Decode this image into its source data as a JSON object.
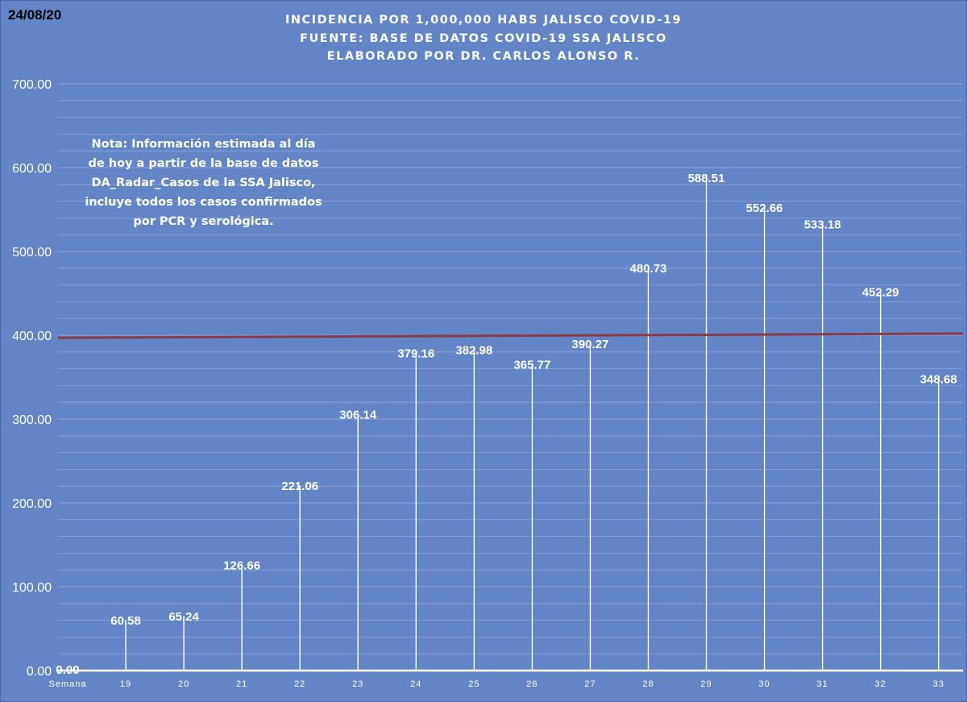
{
  "date": "24/08/20",
  "title_lines": [
    "INCIDENCIA POR 1,000,000 HABS JALISCO COVID-19",
    "FUENTE: BASE DE DATOS COVID-19 SSA JALISCO",
    "ELABORADO POR DR. CARLOS ALONSO R."
  ],
  "note_lines": [
    "Nota: Información estimada al día",
    "de hoy a partir de la base de datos",
    "DA_Radar_Casos de la SSA Jalisco,",
    "incluye todos los casos confirmados",
    "por PCR y serológica."
  ],
  "colors": {
    "background": "#6484c8",
    "stems": "#ffffff",
    "grid": "#8ea3d8",
    "reference_line": "#8b3a4a"
  },
  "chart_data": {
    "type": "bar",
    "style": "thin vertical stems with value labels",
    "categories": [
      "Semana",
      "19",
      "20",
      "21",
      "22",
      "23",
      "24",
      "25",
      "26",
      "27",
      "28",
      "29",
      "30",
      "31",
      "32",
      "33"
    ],
    "values": [
      0.0,
      60.58,
      65.24,
      126.66,
      221.06,
      306.14,
      379.16,
      382.98,
      365.77,
      390.27,
      480.73,
      588.51,
      552.66,
      533.18,
      452.29,
      348.68
    ],
    "data_labels": [
      "0.00",
      "60.58",
      "65.24",
      "126.66",
      "221.06",
      "306.14",
      "379.16",
      "382.98",
      "365.77",
      "390.27",
      "480.73",
      "588.51",
      "552.66",
      "533.18",
      "452.29",
      "348.68"
    ],
    "ylim": [
      0,
      700
    ],
    "yticks": [
      "0.00",
      "100.00",
      "200.00",
      "300.00",
      "400.00",
      "500.00",
      "600.00",
      "700.00"
    ],
    "minor_gridlines": true,
    "reference_line": {
      "y_start": 397,
      "y_end": 402
    },
    "legend": "none"
  }
}
